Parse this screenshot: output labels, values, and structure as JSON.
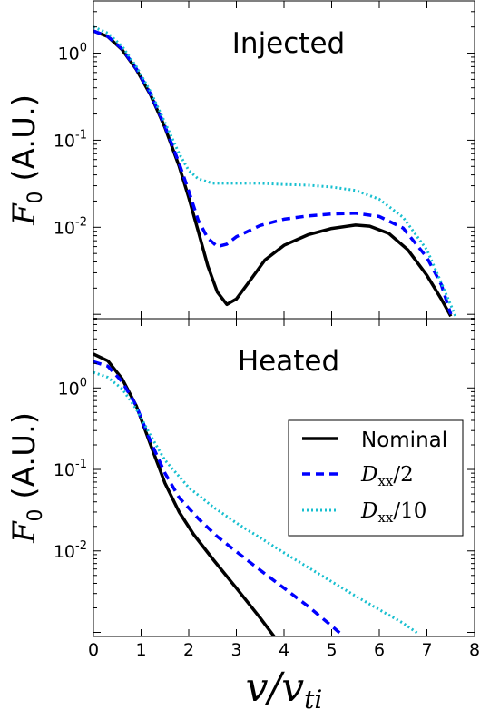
{
  "chart_data": [
    {
      "type": "line",
      "title": "Injected",
      "ylabel": "F0 (A.U.)",
      "xlabel": "",
      "xlim": [
        0,
        8
      ],
      "ylim_log10": [
        -3.05,
        0.6
      ],
      "yscale": "log",
      "yticks": [
        {
          "base": "10",
          "exp": "0"
        },
        {
          "base": "10",
          "exp": "-1"
        },
        {
          "base": "10",
          "exp": "-2"
        }
      ],
      "series": [
        {
          "name": "Nominal",
          "color": "#000000",
          "style": "solid",
          "x": [
            0,
            0.3,
            0.6,
            0.9,
            1.2,
            1.5,
            1.8,
            2.0,
            2.2,
            2.4,
            2.6,
            2.8,
            3.0,
            3.3,
            3.6,
            4.0,
            4.5,
            5.0,
            5.5,
            5.8,
            6.2,
            6.6,
            7.0,
            7.3,
            7.5
          ],
          "y": [
            1.8,
            1.55,
            1.1,
            0.65,
            0.33,
            0.14,
            0.05,
            0.022,
            0.009,
            0.0036,
            0.0018,
            0.0013,
            0.0015,
            0.0025,
            0.0042,
            0.0062,
            0.0082,
            0.0097,
            0.0106,
            0.0103,
            0.0085,
            0.0055,
            0.0028,
            0.0015,
            0.00095
          ]
        },
        {
          "name": "Dxx/2",
          "color": "#0000ff",
          "style": "dashed",
          "x": [
            0,
            0.3,
            0.6,
            0.9,
            1.2,
            1.5,
            1.8,
            2.0,
            2.2,
            2.4,
            2.6,
            2.8,
            3.0,
            3.5,
            4.0,
            4.5,
            5.0,
            5.5,
            6.0,
            6.5,
            7.0,
            7.3,
            7.5
          ],
          "y": [
            1.8,
            1.56,
            1.12,
            0.66,
            0.34,
            0.145,
            0.054,
            0.026,
            0.012,
            0.0075,
            0.006,
            0.0064,
            0.0078,
            0.0105,
            0.0124,
            0.0135,
            0.0142,
            0.0145,
            0.0133,
            0.0098,
            0.0045,
            0.0022,
            0.001
          ]
        },
        {
          "name": "Dxx/10",
          "color": "#17bfcf",
          "style": "dotted",
          "x": [
            0,
            0.3,
            0.6,
            0.9,
            1.2,
            1.5,
            1.8,
            2.0,
            2.2,
            2.5,
            3.0,
            3.5,
            4.0,
            4.5,
            5.0,
            5.5,
            6.0,
            6.5,
            7.0,
            7.3,
            7.6
          ],
          "y": [
            2.0,
            1.7,
            1.2,
            0.7,
            0.36,
            0.16,
            0.07,
            0.045,
            0.036,
            0.032,
            0.032,
            0.032,
            0.031,
            0.0305,
            0.029,
            0.0265,
            0.021,
            0.013,
            0.0055,
            0.0023,
            0.00095
          ]
        }
      ]
    },
    {
      "type": "line",
      "title": "Heated",
      "ylabel": "F0 (A.U.)",
      "xlabel": "v/vti",
      "xlim": [
        0,
        8
      ],
      "ylim_log10": [
        -3.05,
        0.85
      ],
      "yscale": "log",
      "xticks": [
        "0",
        "1",
        "2",
        "3",
        "4",
        "5",
        "6",
        "7",
        "8"
      ],
      "yticks": [
        {
          "base": "10",
          "exp": "0"
        },
        {
          "base": "10",
          "exp": "-1"
        },
        {
          "base": "10",
          "exp": "-2"
        }
      ],
      "legend": {
        "placement": "center-right",
        "entries": [
          "Nominal",
          "Dxx/2",
          "Dxx/10"
        ]
      },
      "series": [
        {
          "name": "Nominal",
          "color": "#000000",
          "style": "solid",
          "x": [
            0,
            0.3,
            0.6,
            0.9,
            1.2,
            1.5,
            1.8,
            2.1,
            2.5,
            3.0,
            3.5,
            3.8
          ],
          "y": [
            2.6,
            2.15,
            1.3,
            0.6,
            0.2,
            0.068,
            0.03,
            0.016,
            0.008,
            0.0035,
            0.0015,
            0.00088
          ]
        },
        {
          "name": "Dxx/2",
          "color": "#0000ff",
          "style": "dashed",
          "x": [
            0,
            0.3,
            0.6,
            0.9,
            1.2,
            1.5,
            1.8,
            2.2,
            2.6,
            3.0,
            3.5,
            4.0,
            4.5,
            5.0,
            5.2
          ],
          "y": [
            2.1,
            1.85,
            1.2,
            0.6,
            0.22,
            0.09,
            0.045,
            0.025,
            0.015,
            0.0098,
            0.0058,
            0.0035,
            0.0021,
            0.0012,
            0.00095
          ]
        },
        {
          "name": "Dxx/10",
          "color": "#17bfcf",
          "style": "dotted",
          "x": [
            0,
            0.3,
            0.6,
            0.9,
            1.2,
            1.5,
            2.0,
            2.5,
            3.0,
            3.5,
            4.0,
            4.5,
            5.0,
            5.5,
            6.0,
            6.5,
            6.8
          ],
          "y": [
            1.55,
            1.35,
            0.98,
            0.55,
            0.26,
            0.13,
            0.06,
            0.035,
            0.022,
            0.0145,
            0.0095,
            0.0063,
            0.0042,
            0.0028,
            0.0019,
            0.0013,
            0.00098
          ]
        }
      ]
    }
  ]
}
